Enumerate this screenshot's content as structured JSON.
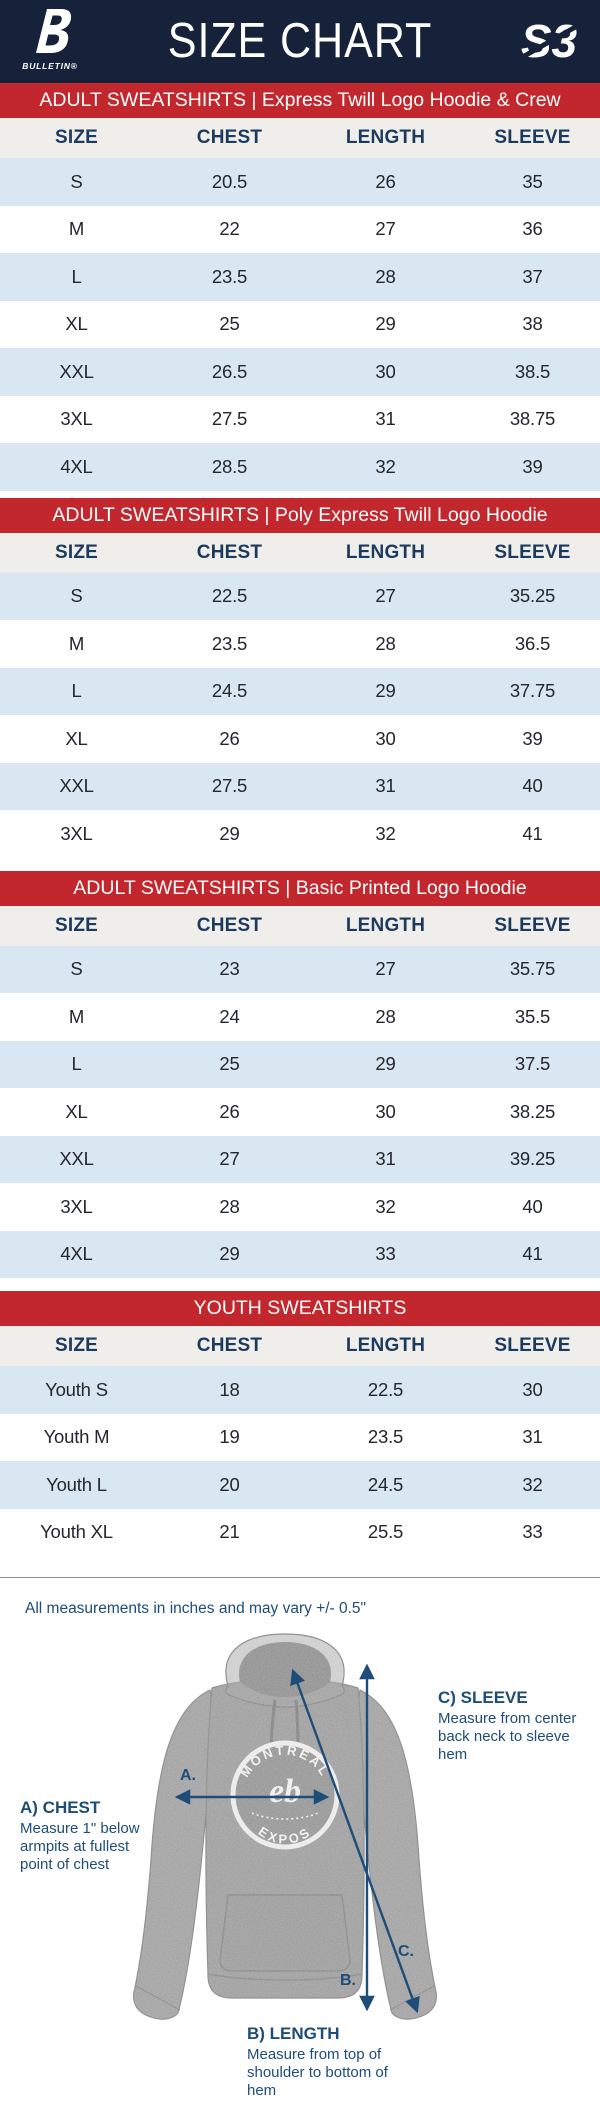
{
  "header": {
    "title": "SIZE CHART",
    "left_logo_text": "BULLETIN®",
    "right_logo_text": "S3"
  },
  "columns": [
    "SIZE",
    "CHEST",
    "LENGTH",
    "SLEEVE"
  ],
  "sections": [
    {
      "title": "ADULT SWEATSHIRTS | Express Twill Logo Hoodie & Crew",
      "rows": [
        [
          "S",
          "20.5",
          "26",
          "35"
        ],
        [
          "M",
          "22",
          "27",
          "36"
        ],
        [
          "L",
          "23.5",
          "28",
          "37"
        ],
        [
          "XL",
          "25",
          "29",
          "38"
        ],
        [
          "XXL",
          "26.5",
          "30",
          "38.5"
        ],
        [
          "3XL",
          "27.5",
          "31",
          "38.75"
        ],
        [
          "4XL",
          "28.5",
          "32",
          "39"
        ]
      ]
    },
    {
      "title": "ADULT SWEATSHIRTS | Poly Express Twill Logo Hoodie",
      "rows": [
        [
          "S",
          "22.5",
          "27",
          "35.25"
        ],
        [
          "M",
          "23.5",
          "28",
          "36.5"
        ],
        [
          "L",
          "24.5",
          "29",
          "37.75"
        ],
        [
          "XL",
          "26",
          "30",
          "39"
        ],
        [
          "XXL",
          "27.5",
          "31",
          "40"
        ],
        [
          "3XL",
          "29",
          "32",
          "41"
        ]
      ]
    },
    {
      "title": "ADULT SWEATSHIRTS | Basic Printed Logo Hoodie",
      "rows": [
        [
          "S",
          "23",
          "27",
          "35.75"
        ],
        [
          "M",
          "24",
          "28",
          "35.5"
        ],
        [
          "L",
          "25",
          "29",
          "37.5"
        ],
        [
          "XL",
          "26",
          "30",
          "38.25"
        ],
        [
          "XXL",
          "27",
          "31",
          "39.25"
        ],
        [
          "3XL",
          "28",
          "32",
          "40"
        ],
        [
          "4XL",
          "29",
          "33",
          "41"
        ]
      ]
    },
    {
      "title": "YOUTH SWEATSHIRTS",
      "rows": [
        [
          "Youth S",
          "18",
          "22.5",
          "30"
        ],
        [
          "Youth M",
          "19",
          "23.5",
          "31"
        ],
        [
          "Youth L",
          "20",
          "24.5",
          "32"
        ],
        [
          "Youth XL",
          "21",
          "25.5",
          "33"
        ]
      ]
    }
  ],
  "note": "All measurements in inches and may vary +/- 0.5\"",
  "diagram": {
    "marker_a": "A.",
    "marker_b": "B.",
    "marker_c": "C.",
    "a_title": "A) CHEST",
    "a_desc": "Measure 1\" below armpits at fullest point of chest",
    "b_title": "B) LENGTH",
    "b_desc": "Measure from top of shoulder to bottom of hem",
    "c_title": "C) SLEEVE",
    "c_desc": "Measure from center back neck to sleeve hem",
    "shirt_logo_top": "MONTREAL",
    "shirt_logo_bottom": "EXPOS",
    "shirt_logo_mark": "eb"
  },
  "colors": {
    "header_navy": "#15223A",
    "banner_red": "#C1272D",
    "thead_bg": "#EFEEEB",
    "thead_text": "#1C3A5E",
    "row_blue": "#D9E7F3",
    "row_text": "#24272C",
    "diagram_navy": "#1D4D78"
  }
}
